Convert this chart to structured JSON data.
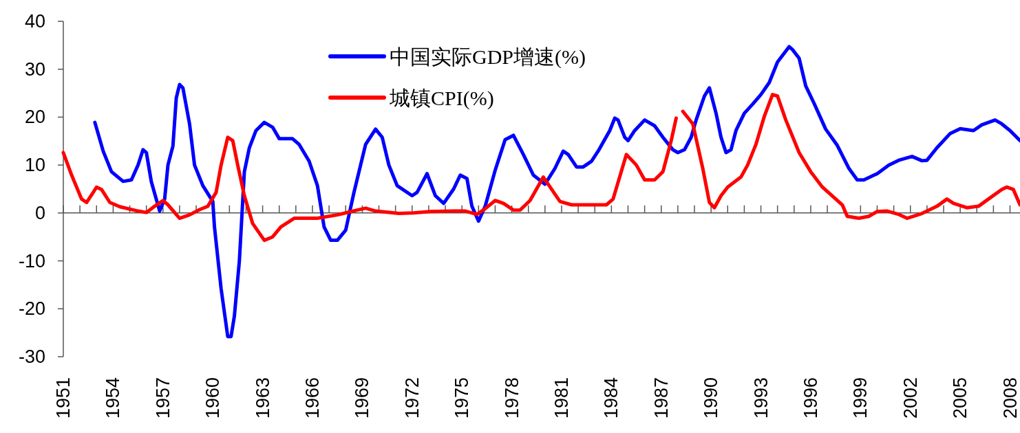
{
  "chart_data": {
    "type": "line",
    "xlim": [
      1951,
      2008.6
    ],
    "xticks": [
      {
        "value": 1951,
        "label": "1951"
      },
      {
        "value": 1952,
        "label": null
      },
      {
        "value": 1953,
        "label": null
      },
      {
        "value": 1954,
        "label": "1954"
      },
      {
        "value": 1955,
        "label": null
      },
      {
        "value": 1956,
        "label": null
      },
      {
        "value": 1957,
        "label": "1957"
      },
      {
        "value": 1958,
        "label": null
      },
      {
        "value": 1959,
        "label": null
      },
      {
        "value": 1960,
        "label": "1960"
      },
      {
        "value": 1961,
        "label": null
      },
      {
        "value": 1962,
        "label": null
      },
      {
        "value": 1963,
        "label": "1963"
      },
      {
        "value": 1964,
        "label": null
      },
      {
        "value": 1965,
        "label": null
      },
      {
        "value": 1966,
        "label": "1966"
      },
      {
        "value": 1967,
        "label": null
      },
      {
        "value": 1968,
        "label": null
      },
      {
        "value": 1969,
        "label": "1969"
      },
      {
        "value": 1970,
        "label": null
      },
      {
        "value": 1971,
        "label": null
      },
      {
        "value": 1972,
        "label": "1972"
      },
      {
        "value": 1973,
        "label": null
      },
      {
        "value": 1974,
        "label": null
      },
      {
        "value": 1975,
        "label": "1975"
      },
      {
        "value": 1976,
        "label": null
      },
      {
        "value": 1977,
        "label": null
      },
      {
        "value": 1978,
        "label": "1978"
      },
      {
        "value": 1979,
        "label": null
      },
      {
        "value": 1980,
        "label": null
      },
      {
        "value": 1981,
        "label": "1981"
      },
      {
        "value": 1982,
        "label": null
      },
      {
        "value": 1983,
        "label": null
      },
      {
        "value": 1984,
        "label": "1984"
      },
      {
        "value": 1985,
        "label": null
      },
      {
        "value": 1986,
        "label": null
      },
      {
        "value": 1987,
        "label": "1987"
      },
      {
        "value": 1988,
        "label": null
      },
      {
        "value": 1989,
        "label": null
      },
      {
        "value": 1990,
        "label": "1990"
      },
      {
        "value": 1991,
        "label": null
      },
      {
        "value": 1992,
        "label": null
      },
      {
        "value": 1993,
        "label": "1993"
      },
      {
        "value": 1994,
        "label": null
      },
      {
        "value": 1995,
        "label": null
      },
      {
        "value": 1996,
        "label": "1996"
      },
      {
        "value": 1997,
        "label": null
      },
      {
        "value": 1998,
        "label": null
      },
      {
        "value": 1999,
        "label": "1999"
      },
      {
        "value": 2000,
        "label": null
      },
      {
        "value": 2001,
        "label": null
      },
      {
        "value": 2002,
        "label": "2002"
      },
      {
        "value": 2003,
        "label": null
      },
      {
        "value": 2004,
        "label": null
      },
      {
        "value": 2005,
        "label": "2005"
      },
      {
        "value": 2006,
        "label": null
      },
      {
        "value": 2007,
        "label": null
      },
      {
        "value": 2008,
        "label": "2008"
      }
    ],
    "ylim": [
      -30,
      40
    ],
    "yticks": [
      -30,
      -20,
      -10,
      0,
      10,
      20,
      30,
      40
    ],
    "legend": "top",
    "marker": "none",
    "line_style": "solid",
    "series": [
      {
        "name": "中国实际GDP增速(%)",
        "color": "#0000ff",
        "x": [
          1952.9,
          1953.4,
          1953.9,
          1954.6,
          1955.1,
          1955.5,
          1955.8,
          1956.0,
          1956.3,
          1956.8,
          1957.1,
          1957.3,
          1957.6,
          1957.8,
          1958.0,
          1958.2,
          1958.6,
          1958.9,
          1959.4,
          1960.0,
          1960.1,
          1960.5,
          1960.9,
          1961.1,
          1961.3,
          1961.6,
          1961.9,
          1962.2,
          1962.6,
          1963.1,
          1963.6,
          1964.0,
          1964.8,
          1965.2,
          1965.8,
          1966.3,
          1966.7,
          1967.1,
          1967.5,
          1968.0,
          1968.5,
          1969.2,
          1969.8,
          1970.2,
          1970.6,
          1971.1,
          1972.0,
          1972.3,
          1972.9,
          1973.4,
          1973.9,
          1974.5,
          1974.9,
          1975.3,
          1975.6,
          1976.0,
          1976.4,
          1977.0,
          1977.6,
          1978.1,
          1978.7,
          1979.3,
          1980.0,
          1980.6,
          1981.1,
          1981.4,
          1981.9,
          1982.3,
          1982.8,
          1983.2,
          1983.9,
          1984.2,
          1984.4,
          1984.8,
          1985.0,
          1985.4,
          1986.0,
          1986.6,
          1987.1,
          1987.7,
          1988.0,
          1988.4,
          1988.8,
          1989.1,
          1989.6,
          1989.9,
          1990.3,
          1990.6,
          1990.9,
          1991.2,
          1991.5,
          1992.0,
          1992.5,
          1993.0,
          1993.5,
          1994.0,
          1994.7,
          1994.9,
          1995.3,
          1995.7,
          1996.2,
          1996.9,
          1997.6,
          1998.3,
          1998.8,
          1999.2,
          2000.0,
          2000.7,
          2001.3,
          2002.1,
          2002.7,
          2003.0,
          2003.6,
          2004.4,
          2005.0,
          2005.8,
          2006.3,
          2007.1,
          2007.5,
          2008.0,
          2008.6
        ],
        "values": [
          18.9,
          12.9,
          8.6,
          6.6,
          6.9,
          10,
          13.2,
          12.6,
          6.5,
          0.4,
          2.9,
          10,
          14,
          24,
          26.8,
          26.1,
          18.6,
          10,
          5.7,
          2.4,
          -2.9,
          -15.8,
          -25.8,
          -25.8,
          -21.5,
          -10,
          8.6,
          13.6,
          17.2,
          18.9,
          17.9,
          15.5,
          15.5,
          14.3,
          10.8,
          5.7,
          -2.9,
          -5.7,
          -5.7,
          -3.6,
          4.3,
          14.3,
          17.5,
          15.8,
          10,
          5.7,
          3.6,
          4.3,
          8.2,
          3.6,
          2,
          5,
          7.9,
          7.2,
          1.4,
          -1.7,
          1.4,
          8.9,
          15.3,
          16.2,
          12.2,
          7.9,
          6,
          9.3,
          12.9,
          12.2,
          9.6,
          9.6,
          10.8,
          12.9,
          17.2,
          19.8,
          19.4,
          15.8,
          15.1,
          17.2,
          19.4,
          18.2,
          15.8,
          13.2,
          12.6,
          13.2,
          15.8,
          19.4,
          24.4,
          26.1,
          20.8,
          15.8,
          12.6,
          13.2,
          17.2,
          20.8,
          22.7,
          24.7,
          27.2,
          31.5,
          34.7,
          34.1,
          32.3,
          26.5,
          22.9,
          17.5,
          14.1,
          9.3,
          6.9,
          6.9,
          8.2,
          10,
          11,
          11.8,
          10.9,
          11,
          13.6,
          16.6,
          17.6,
          17.2,
          18.4,
          19.4,
          18.6,
          17.2,
          15.1
        ]
      },
      {
        "name": "城镇CPI(%)",
        "color": "#ff0000",
        "x": [
          1951.0,
          1951.5,
          1952.1,
          1952.4,
          1952.8,
          1953.0,
          1953.3,
          1953.8,
          1954.4,
          1955.5,
          1956.0,
          1956.5,
          1957.0,
          1957.3,
          1958.0,
          1958.6,
          1959.2,
          1959.7,
          1960.2,
          1960.5,
          1960.9,
          1961.2,
          1961.5,
          1961.9,
          1962.4,
          1963.1,
          1963.6,
          1964.1,
          1964.9,
          1966.3,
          1967.5,
          1968.7,
          1969.2,
          1969.8,
          1971.2,
          1972.1,
          1973.1,
          1974.5,
          1975.2,
          1975.9,
          1976.4,
          1977.0,
          1977.5,
          1978.1,
          1978.5,
          1979.1,
          1979.9,
          1980.9,
          1981.6,
          1983.7,
          1984.1,
          1984.9,
          1985.5,
          1986.0,
          1986.6,
          1987.1,
          1987.6,
          1987.9,
          1988.1,
          1988.3,
          1988.9,
          1989.5,
          1989.9,
          1990.2,
          1990.6,
          1991.0,
          1991.8,
          1992.2,
          1992.7,
          1993.2,
          1993.7,
          1994.0,
          1994.5,
          1995.3,
          1996.0,
          1996.7,
          1997.9,
          1998.2,
          1998.9,
          1999.5,
          2000.0,
          2000.6,
          2001.3,
          2001.8,
          2002.7,
          2003.6,
          2004.2,
          2004.6,
          2005.4,
          2006.1,
          2006.7,
          2007.5,
          2007.8,
          2008.2,
          2008.6
        ],
        "values": [
          12.6,
          7.9,
          2.9,
          2.2,
          4.3,
          5.4,
          4.9,
          2.2,
          1.3,
          0.4,
          0.1,
          1.4,
          2.6,
          1.7,
          -1.1,
          -0.4,
          0.7,
          1.4,
          4.3,
          10,
          15.8,
          15.1,
          10,
          3.6,
          -2.2,
          -5.7,
          -5,
          -2.9,
          -1.1,
          -1.1,
          -0.4,
          0.6,
          1.0,
          0.4,
          -0.1,
          0,
          0.3,
          0.4,
          0.4,
          -0.3,
          0.9,
          2.6,
          2,
          0.6,
          0.6,
          2.6,
          7.5,
          2.4,
          1.7,
          1.7,
          2.9,
          12.2,
          10,
          6.9,
          6.9,
          8.6,
          15.1,
          19.8,
          null,
          21.2,
          18.6,
          9.3,
          2.2,
          1.1,
          3.6,
          5.4,
          7.5,
          10,
          14.3,
          20.1,
          24.7,
          24.4,
          19.4,
          12.6,
          8.6,
          5.4,
          1.7,
          -0.7,
          -1.1,
          -0.7,
          0.3,
          0.4,
          -0.3,
          -1.1,
          -0.1,
          1.4,
          2.9,
          2,
          1.1,
          1.4,
          2.9,
          4.9,
          5.4,
          4.9,
          1.7
        ]
      }
    ]
  }
}
